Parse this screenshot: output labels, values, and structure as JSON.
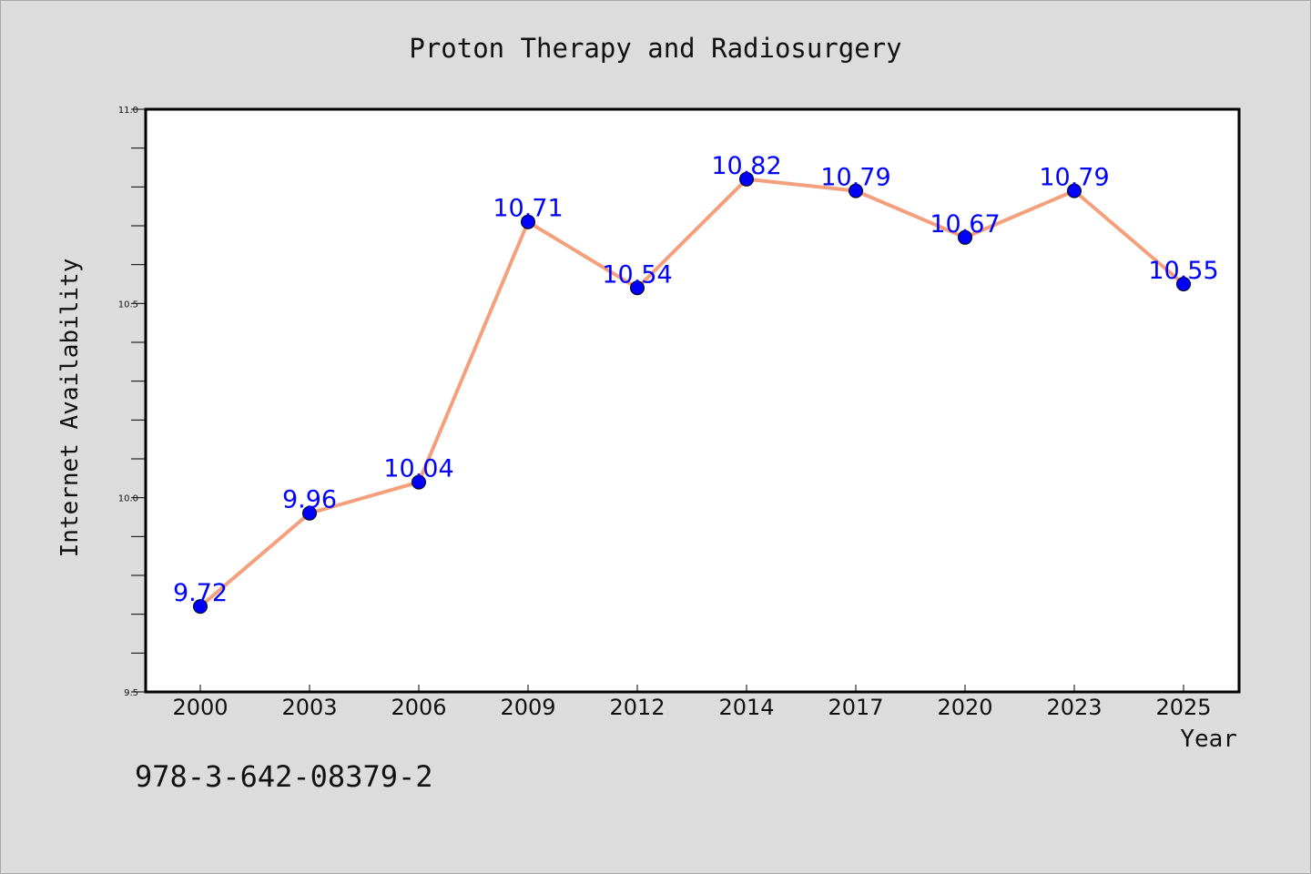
{
  "chart_data": {
    "type": "line",
    "title": "Proton Therapy and Radiosurgery",
    "xlabel": "Year",
    "ylabel": "Internet Availability",
    "categories": [
      "2000",
      "2003",
      "2006",
      "2009",
      "2012",
      "2014",
      "2017",
      "2020",
      "2023",
      "2025"
    ],
    "series": [
      {
        "values": [
          9.72,
          9.96,
          10.04,
          10.71,
          10.54,
          10.82,
          10.79,
          10.67,
          10.79,
          10.55
        ],
        "line_color": "#f4a07c",
        "marker_color": "#0000ff"
      }
    ],
    "data_labels": [
      "9.72",
      "9.96",
      "10.04",
      "10.71",
      "10.54",
      "10.82",
      "10.79",
      "10.67",
      "10.79",
      "10.55"
    ],
    "ylim": [
      9.5,
      11.0
    ],
    "yticks": [
      9.5,
      10.0,
      10.5,
      11.0
    ],
    "ytick_labels": [
      "9.5",
      "10.0",
      "10.5",
      "11.0"
    ],
    "y_minor_tick_step": 0.1,
    "grid": false,
    "legend": "none",
    "plot_background": "#ffffff",
    "figure_background": "#dcdcdc",
    "label_color": "#0000ff"
  },
  "footer": {
    "isbn": "978-3-642-08379-2"
  }
}
